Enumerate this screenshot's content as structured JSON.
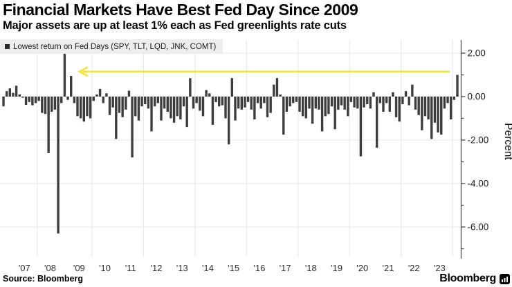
{
  "header": {
    "title": "Financial Markets Have Best Fed Day Since 2009",
    "subtitle": "Major assets are up at least 1% each as Fed greenlights rate cuts"
  },
  "footer": {
    "source": "Source: Bloomberg",
    "brand": "Bloomberg"
  },
  "colors": {
    "bar": "#3d3d3d",
    "accent_yellow": "#f6e331",
    "legend_bg": "#ededed",
    "grid": "#e4e4e4",
    "axis": "#4d4d4d",
    "tick_text": "#1a1a1a",
    "year_text": "#2e2e2e"
  },
  "chart_data": {
    "type": "bar",
    "title": "Financial Markets Have Best Fed Day Since 2009",
    "subtitle": "Major assets are up at least 1% each as Fed greenlights rate cuts",
    "legend": "Lowest return on Fed Days (SPY, TLT, LQD, JNK, COMT)",
    "ylabel": "Percent",
    "ylim": [
      -7.4,
      2.7
    ],
    "grid": true,
    "legend_position": "top-left",
    "yticks": [
      {
        "v": 2,
        "label": "2.00"
      },
      {
        "v": 0,
        "label": "0.00"
      },
      {
        "v": -2,
        "label": "-2.00"
      },
      {
        "v": -4,
        "label": "-4.00"
      },
      {
        "v": -6,
        "label": "-6.00"
      }
    ],
    "yticks_minor": [
      1,
      -1,
      -3,
      -5,
      -7
    ],
    "annotation": {
      "type": "arrow",
      "y": 1.15,
      "points_from": "2024 Fed day bar",
      "points_to": "2009",
      "color": "#f6e331"
    },
    "years": [
      {
        "year": 2006,
        "label": "",
        "values": [
          -0.45,
          0.25,
          0.38
        ]
      },
      {
        "year": 2007,
        "label": "'07",
        "values": [
          0.17,
          0.5,
          0.1,
          -0.05,
          -0.38,
          -0.25,
          -0.4,
          -0.3
        ]
      },
      {
        "year": 2008,
        "label": "'08",
        "values": [
          -0.2,
          -0.75,
          -0.8,
          -2.6,
          -0.7,
          -0.6,
          -6.3,
          -0.3,
          2.05
        ]
      },
      {
        "year": 2009,
        "label": "'09",
        "values": [
          -0.15,
          0.95,
          -0.3,
          -0.9,
          -1.0,
          -1.15,
          -0.9,
          -1.0
        ]
      },
      {
        "year": 2010,
        "label": "'10",
        "values": [
          -0.2,
          0.1,
          0.35,
          -0.3,
          0.15,
          -0.85,
          -0.5,
          -1.95
        ]
      },
      {
        "year": 2011,
        "label": "'11",
        "values": [
          -0.75,
          -0.95,
          -0.6,
          0.27,
          -2.8,
          -0.9,
          -1.1,
          -0.45
        ]
      },
      {
        "year": 2012,
        "label": "'12",
        "values": [
          -0.35,
          -0.55,
          -1.6,
          -0.45,
          -0.3,
          -1.1,
          -0.55,
          -0.7
        ]
      },
      {
        "year": 2013,
        "label": "'13",
        "values": [
          -1.0,
          -1.2,
          -0.9,
          -1.05,
          -0.45,
          -1.4,
          0.85,
          -0.55
        ]
      },
      {
        "year": 2014,
        "label": "'14",
        "values": [
          -0.3,
          -0.65,
          -0.9,
          0.3,
          0.15,
          -1.3,
          -0.25,
          -0.45
        ]
      },
      {
        "year": 2015,
        "label": "'15",
        "values": [
          -0.4,
          -1.0,
          -2.2,
          0.85,
          -1.1,
          -0.55,
          -0.6,
          -0.5
        ]
      },
      {
        "year": 2016,
        "label": "'16",
        "values": [
          -0.25,
          -0.6,
          -1.05,
          -0.3,
          -0.55,
          -0.3,
          -0.95,
          -0.75
        ]
      },
      {
        "year": 2017,
        "label": "'17",
        "values": [
          0.55,
          0.85,
          0.1,
          -1.75,
          -0.7,
          -0.45,
          -0.3,
          -0.25
        ]
      },
      {
        "year": 2018,
        "label": "'18",
        "values": [
          -0.7,
          -0.9,
          -1.0,
          -0.55,
          -1.25,
          -0.55,
          -0.6,
          -1.6
        ]
      },
      {
        "year": 2019,
        "label": "'19",
        "values": [
          -0.9,
          -0.8,
          -0.45,
          -1.5,
          -0.6,
          -0.4,
          -0.6,
          -0.9
        ]
      },
      {
        "year": 2020,
        "label": "'20",
        "values": [
          -0.25,
          -0.5,
          -0.55,
          -2.75,
          -0.5,
          -0.35,
          -0.55,
          0.2
        ]
      },
      {
        "year": 2021,
        "label": "'21",
        "values": [
          -2.35,
          -0.3,
          -0.7,
          -0.3,
          -0.7,
          0.2,
          -0.95,
          -1.15
        ]
      },
      {
        "year": 2022,
        "label": "'22",
        "values": [
          -0.35,
          0.25,
          -0.4,
          0.55,
          -0.6,
          -0.85,
          -1.55,
          -0.9
        ]
      },
      {
        "year": 2023,
        "label": "'23",
        "values": [
          -1.05,
          -1.95,
          -1.2,
          -1.65,
          -1.75,
          -0.55,
          -0.3,
          -1.05
        ]
      },
      {
        "year": 2024,
        "label": "",
        "values": [
          -0.15,
          1.0
        ]
      }
    ]
  }
}
